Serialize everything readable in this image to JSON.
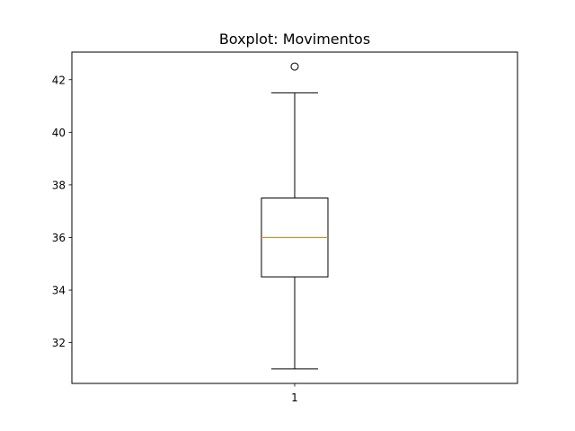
{
  "chart_data": {
    "type": "boxplot",
    "title": "Boxplot: Movimentos",
    "xlabel": "",
    "ylabel": "",
    "categories": [
      "1"
    ],
    "boxes": [
      {
        "category": "1",
        "whisker_low": 31.0,
        "q1": 34.5,
        "median": 36.0,
        "q3": 37.5,
        "whisker_high": 41.5,
        "outliers": [
          42.5
        ]
      }
    ],
    "yticks": [
      32,
      34,
      36,
      38,
      40,
      42
    ],
    "ylim": [
      30.45,
      43.05
    ],
    "grid": false,
    "colors": {
      "box": "#000000",
      "median": "#ff7f0e",
      "whisker": "#000000",
      "outlier": "#000000"
    }
  }
}
